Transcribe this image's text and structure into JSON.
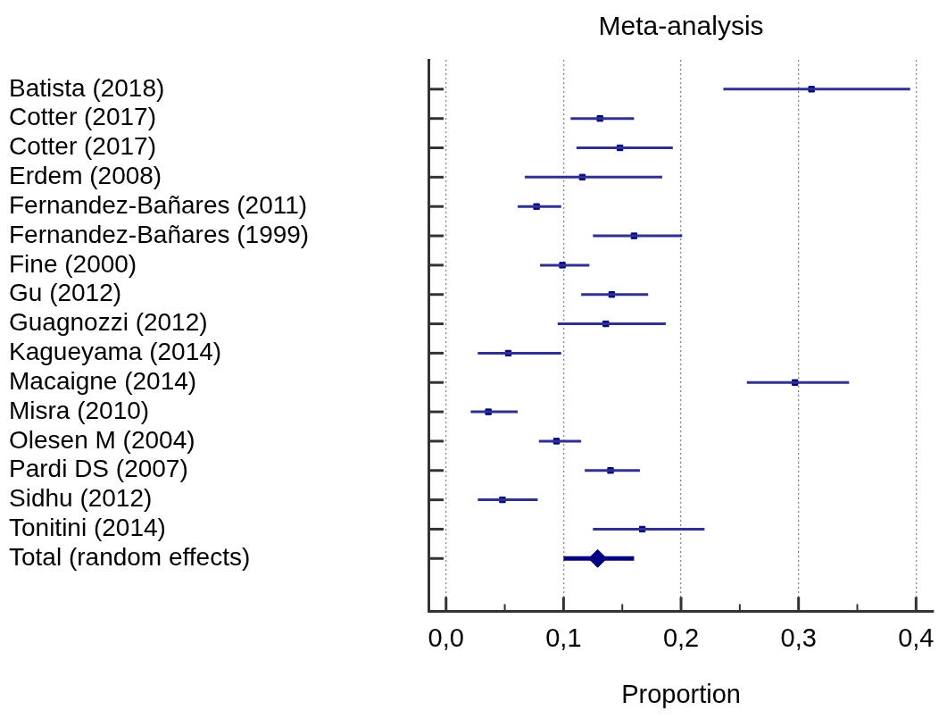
{
  "chart_data": {
    "type": "scatter",
    "orientation": "horizontal",
    "title": "Meta-analysis",
    "xlabel": "Proportion",
    "categories": [
      "Batista (2018)",
      "Cotter (2017)",
      "Cotter (2017)",
      "Erdem (2008)",
      "Fernandez-Bañares (2011)",
      "Fernandez-Bañares (1999)",
      "Fine (2000)",
      "Gu (2012)",
      "Guagnozzi (2012)",
      "Kagueyama (2014)",
      "Macaigne (2014)",
      "Misra (2010)",
      "Olesen M (2004)",
      "Pardi DS (2007)",
      "Sidhu (2012)",
      "Tonitini (2014)",
      "Total (random effects)"
    ],
    "series": [
      {
        "color": "#000080",
        "marker": "square",
        "values": [
          0.311,
          0.131,
          0.148,
          0.116,
          0.077,
          0.16,
          0.099,
          0.141,
          0.136,
          0.053,
          0.297,
          0.036,
          0.094,
          0.14,
          0.048,
          0.167,
          null
        ],
        "errors": [
          [
            0.236,
            0.395
          ],
          [
            0.106,
            0.16
          ],
          [
            0.111,
            0.193
          ],
          [
            0.067,
            0.184
          ],
          [
            0.061,
            0.098
          ],
          [
            0.125,
            0.201
          ],
          [
            0.08,
            0.122
          ],
          [
            0.115,
            0.172
          ],
          [
            0.095,
            0.187
          ],
          [
            0.027,
            0.098
          ],
          [
            0.256,
            0.343
          ],
          [
            0.021,
            0.061
          ],
          [
            0.079,
            0.115
          ],
          [
            0.118,
            0.165
          ],
          [
            0.027,
            0.078
          ],
          [
            0.125,
            0.22
          ],
          null
        ]
      },
      {
        "color": "#000080",
        "marker": "diamond",
        "values": [
          null,
          null,
          null,
          null,
          null,
          null,
          null,
          null,
          null,
          null,
          null,
          null,
          null,
          null,
          null,
          null,
          0.129
        ],
        "errors": [
          null,
          null,
          null,
          null,
          null,
          null,
          null,
          null,
          null,
          null,
          null,
          null,
          null,
          null,
          null,
          null,
          [
            0.1,
            0.16
          ]
        ]
      }
    ],
    "xlim": [
      -0.015,
      0.415
    ],
    "xticks": [
      {
        "value": 0,
        "label": "0,0"
      },
      {
        "value": 0.05,
        "label": null
      },
      {
        "value": 0.1,
        "label": "0,1"
      },
      {
        "value": 0.15,
        "label": null
      },
      {
        "value": 0.2,
        "label": "0,2"
      },
      {
        "value": 0.25,
        "label": null
      },
      {
        "value": 0.3,
        "label": "0,3"
      },
      {
        "value": 0.35,
        "label": null
      },
      {
        "value": 0.4,
        "label": "0,4"
      }
    ],
    "grid": "x",
    "legend": false
  }
}
